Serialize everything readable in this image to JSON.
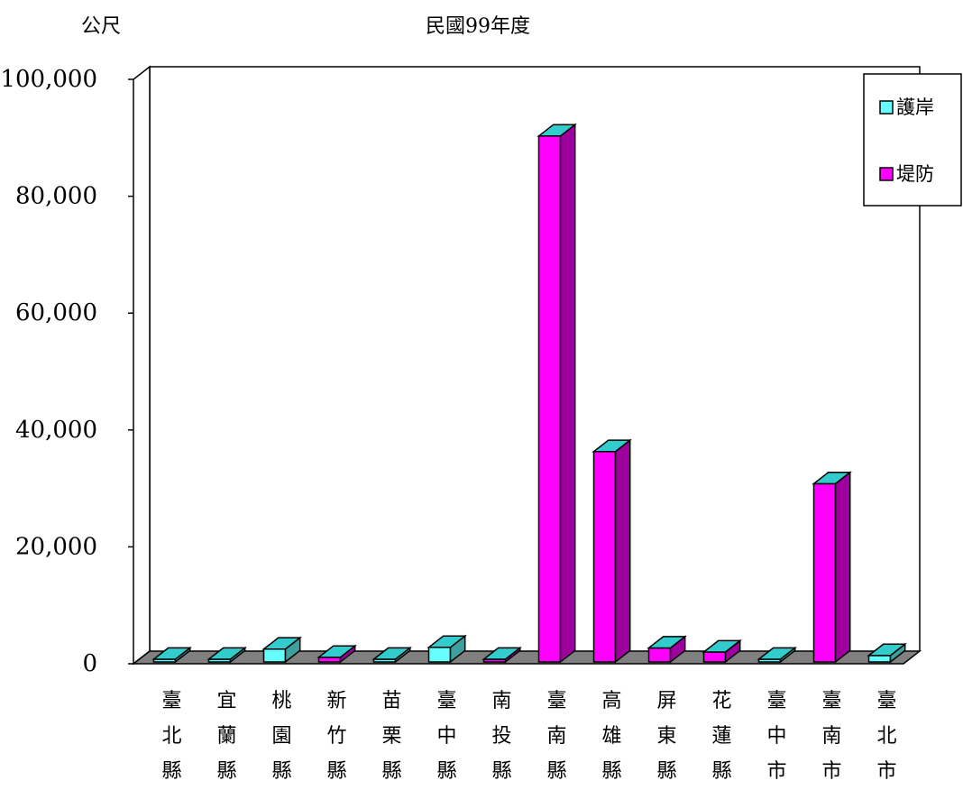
{
  "chart_data": {
    "type": "bar",
    "title": "民國99年度",
    "ylabel": "公尺",
    "xlabel": "",
    "ylim": [
      0,
      100000
    ],
    "yticks": [
      "0",
      "20,000",
      "40,000",
      "60,000",
      "80,000",
      "100,000"
    ],
    "categories": [
      [
        "臺",
        "北",
        "縣"
      ],
      [
        "宜",
        "蘭",
        "縣"
      ],
      [
        "桃",
        "園",
        "縣"
      ],
      [
        "新",
        "竹",
        "縣"
      ],
      [
        "苗",
        "栗",
        "縣"
      ],
      [
        "臺",
        "中",
        "縣"
      ],
      [
        "南",
        "投",
        "縣"
      ],
      [
        "臺",
        "南",
        "縣"
      ],
      [
        "高",
        "雄",
        "縣"
      ],
      [
        "屏",
        "東",
        "縣"
      ],
      [
        "花",
        "蓮",
        "縣"
      ],
      [
        "臺",
        "中",
        "市"
      ],
      [
        "臺",
        "南",
        "市"
      ],
      [
        "臺",
        "北",
        "市"
      ]
    ],
    "series": [
      {
        "name": "護岸",
        "color": "#66ffff",
        "values": [
          100,
          100,
          2200,
          0,
          100,
          2500,
          0,
          0,
          0,
          0,
          0,
          100,
          0,
          1100
        ]
      },
      {
        "name": "堤防",
        "color": "#ff00ff",
        "values": [
          0,
          0,
          0,
          800,
          0,
          0,
          300,
          90000,
          36000,
          2400,
          1700,
          0,
          30500,
          0
        ]
      }
    ],
    "legend_position": "top-right",
    "grid": false
  }
}
